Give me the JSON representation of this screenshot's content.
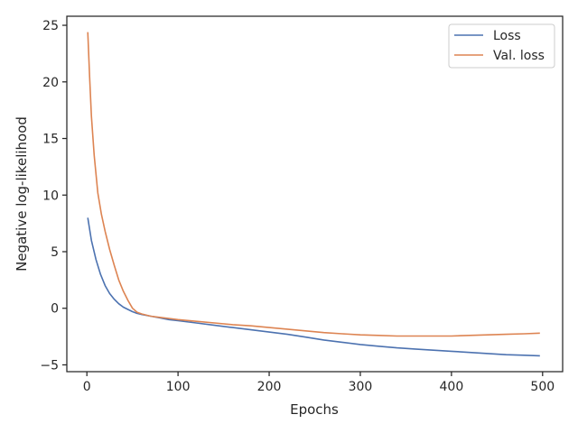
{
  "chart_data": {
    "type": "line",
    "title": "",
    "xlabel": "Epochs",
    "ylabel": "Negative log-likelihood",
    "xlim": [
      -22,
      522
    ],
    "ylim": [
      -5.6,
      25.8
    ],
    "xticks": [
      0,
      100,
      200,
      300,
      400,
      500
    ],
    "yticks": [
      -5,
      0,
      5,
      10,
      15,
      20,
      25
    ],
    "grid": false,
    "legend_position": "top-right",
    "series": [
      {
        "name": "Loss",
        "color": "#4c72b0",
        "x": [
          1,
          5,
          10,
          15,
          20,
          25,
          30,
          35,
          40,
          45,
          50,
          55,
          60,
          70,
          80,
          90,
          100,
          120,
          140,
          160,
          180,
          200,
          220,
          240,
          260,
          280,
          300,
          320,
          340,
          360,
          380,
          400,
          420,
          440,
          460,
          480,
          497
        ],
        "y": [
          8.0,
          6.0,
          4.3,
          3.0,
          2.0,
          1.3,
          0.8,
          0.4,
          0.1,
          -0.1,
          -0.3,
          -0.45,
          -0.55,
          -0.7,
          -0.85,
          -1.0,
          -1.1,
          -1.3,
          -1.5,
          -1.7,
          -1.9,
          -2.1,
          -2.3,
          -2.55,
          -2.8,
          -3.0,
          -3.2,
          -3.35,
          -3.5,
          -3.6,
          -3.7,
          -3.8,
          -3.9,
          -4.0,
          -4.1,
          -4.15,
          -4.2
        ]
      },
      {
        "name": "Val. loss",
        "color": "#dd8452",
        "x": [
          1,
          3,
          5,
          8,
          12,
          16,
          20,
          25,
          30,
          35,
          40,
          45,
          50,
          55,
          60,
          70,
          80,
          90,
          100,
          120,
          140,
          160,
          180,
          200,
          220,
          240,
          260,
          280,
          300,
          320,
          340,
          360,
          380,
          400,
          420,
          440,
          460,
          480,
          497
        ],
        "y": [
          24.4,
          20.5,
          17.0,
          13.5,
          10.2,
          8.3,
          6.8,
          5.2,
          3.8,
          2.5,
          1.5,
          0.7,
          0.0,
          -0.35,
          -0.5,
          -0.7,
          -0.8,
          -0.9,
          -1.0,
          -1.15,
          -1.3,
          -1.45,
          -1.55,
          -1.7,
          -1.85,
          -2.0,
          -2.15,
          -2.25,
          -2.35,
          -2.4,
          -2.45,
          -2.45,
          -2.45,
          -2.45,
          -2.4,
          -2.35,
          -2.3,
          -2.25,
          -2.2
        ]
      }
    ]
  }
}
